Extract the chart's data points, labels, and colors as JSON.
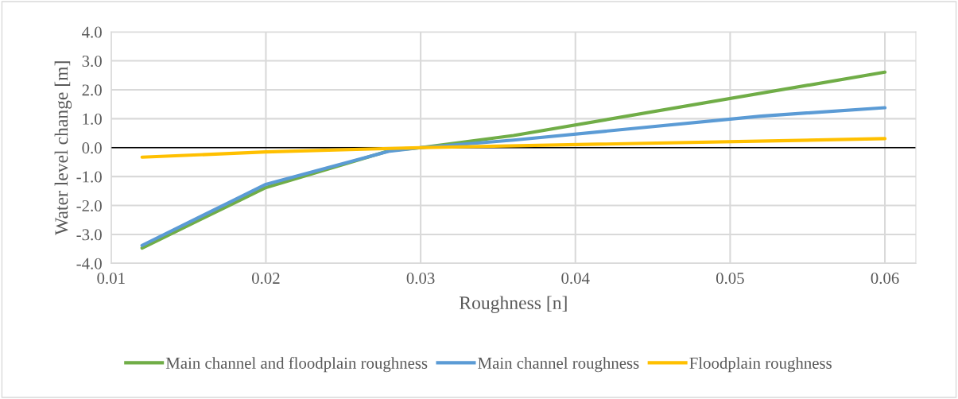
{
  "chart_data": {
    "type": "line",
    "xlabel": "Roughness [n]",
    "ylabel": "Water level change [m]",
    "xlim": [
      0.01,
      0.062
    ],
    "xticks": [
      {
        "value": 0.01,
        "label": "0.01"
      },
      {
        "value": 0.02,
        "label": "0.02"
      },
      {
        "value": 0.03,
        "label": "0.03"
      },
      {
        "value": 0.04,
        "label": "0.04"
      },
      {
        "value": 0.05,
        "label": "0.05"
      },
      {
        "value": 0.06,
        "label": "0.06"
      }
    ],
    "ylim": [
      -4,
      4
    ],
    "yticks": [
      {
        "value": -4,
        "label": "-4.0"
      },
      {
        "value": -3,
        "label": "-3.0"
      },
      {
        "value": -2,
        "label": "-2.0"
      },
      {
        "value": -1,
        "label": "-1.0"
      },
      {
        "value": 0,
        "label": "0.0"
      },
      {
        "value": 1,
        "label": "1.0"
      },
      {
        "value": 2,
        "label": "2.0"
      },
      {
        "value": 3,
        "label": "3.0"
      },
      {
        "value": 4,
        "label": "4.0"
      }
    ],
    "grid": true,
    "legend": "bottom",
    "marker": "none",
    "line_style": "solid",
    "ref_lines": [
      {
        "axis": "y",
        "value": 0,
        "color": "#000000"
      }
    ],
    "series": [
      {
        "name": "Main channel and floodplain roughness",
        "color": "#70ad47",
        "x": [
          0.012,
          0.02,
          0.028,
          0.03,
          0.036,
          0.06
        ],
        "values": [
          -3.47,
          -1.38,
          -0.1,
          0,
          0.42,
          2.61
        ]
      },
      {
        "name": "Main channel roughness",
        "color": "#5b9bd5",
        "x": [
          0.012,
          0.02,
          0.028,
          0.03,
          0.036,
          0.052,
          0.06
        ],
        "values": [
          -3.38,
          -1.27,
          -0.12,
          0,
          0.26,
          1.09,
          1.38
        ]
      },
      {
        "name": "Floodplain roughness",
        "color": "#ffc000",
        "x": [
          0.012,
          0.02,
          0.03,
          0.06
        ],
        "values": [
          -0.33,
          -0.15,
          0,
          0.31
        ]
      }
    ]
  }
}
